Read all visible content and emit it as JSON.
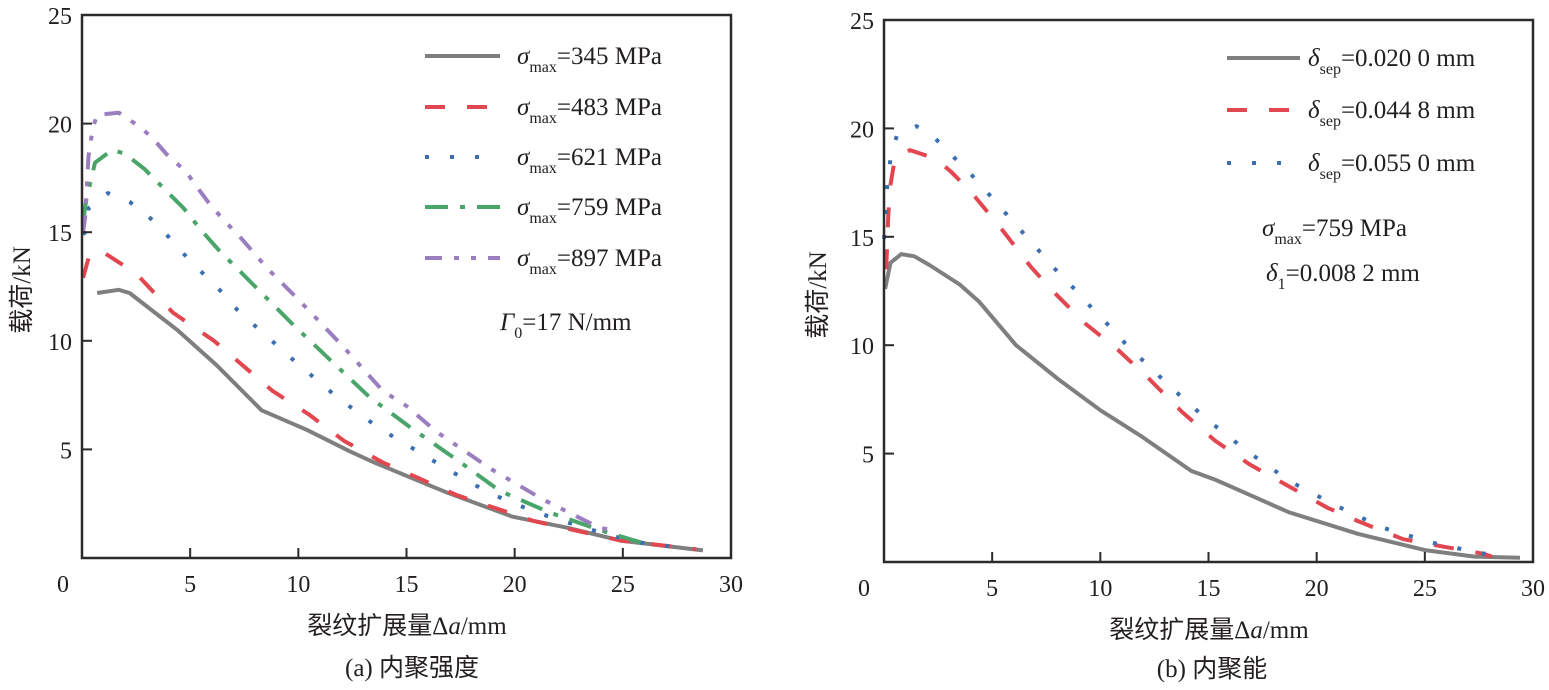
{
  "chart_data": [
    {
      "type": "line",
      "panel": "left",
      "caption": "(a) 内聚强度",
      "xlabel_prefix": "裂纹扩展量Δ",
      "xlabel_var": "a",
      "xlabel_suffix": "/mm",
      "ylabel": "载荷/kN",
      "xlim": [
        0,
        30
      ],
      "ylim": [
        0,
        25
      ],
      "xticks": [
        0,
        5,
        10,
        15,
        20,
        25,
        30
      ],
      "yticks": [
        5,
        10,
        15,
        20,
        25
      ],
      "origin_label": "0",
      "grid": false,
      "legend_position": "top-right",
      "annotation": {
        "symbol": "Γ",
        "sub": "0",
        "text": "=17 N/mm"
      },
      "series": [
        {
          "name": "σmax=345 MPa",
          "symbol": "σ",
          "sub": "max",
          "label": "=345 MPa",
          "color": "#7f7f7f",
          "style": "solid",
          "x": [
            0.7,
            1.7,
            2.2,
            4.4,
            6.2,
            8.3,
            10.4,
            12.4,
            13.5,
            15.2,
            16.9,
            19.9,
            22.4,
            24.9,
            28.7
          ],
          "y": [
            12.2,
            12.35,
            12.2,
            10.5,
            8.9,
            6.8,
            5.9,
            4.9,
            4.4,
            3.7,
            3.0,
            1.9,
            1.4,
            0.8,
            0.35
          ]
        },
        {
          "name": "σmax=483 MPa",
          "symbol": "σ",
          "sub": "max",
          "label": "=483 MPa",
          "color": "#e2474f",
          "style": "dashed",
          "x": [
            0.05,
            0.3,
            0.8,
            2.5,
            4.2,
            6.1,
            8.8,
            10.5,
            12.1,
            13.9,
            15.5,
            17.3,
            20.9,
            24.9,
            28.4
          ],
          "y": [
            12.9,
            13.8,
            14.2,
            13.1,
            11.3,
            10.0,
            7.7,
            6.6,
            5.4,
            4.4,
            3.7,
            2.9,
            1.7,
            0.8,
            0.4
          ]
        },
        {
          "name": "σmax=621 MPa",
          "symbol": "σ",
          "sub": "max",
          "label": "=621 MPa",
          "color": "#3a6fb0",
          "style": "dotted",
          "x": [
            0.05,
            0.15,
            0.3,
            1.2,
            2.2,
            3.1,
            3.9,
            4.7,
            5.6,
            6.4,
            7.2,
            8.1,
            9.9,
            11.8,
            13.7,
            14.7,
            16.7,
            18.8,
            21.0,
            23.2,
            25.5,
            27.8
          ],
          "y": [
            14.9,
            15.0,
            16.1,
            16.8,
            16.4,
            15.7,
            14.9,
            14.0,
            13.1,
            12.3,
            11.4,
            10.6,
            9.0,
            7.4,
            6.0,
            5.4,
            4.2,
            3.0,
            2.1,
            1.4,
            0.75,
            0.45
          ]
        },
        {
          "name": "σmax=759 MPa",
          "symbol": "σ",
          "sub": "max",
          "label": "=759 MPa",
          "color": "#4aa56b",
          "style": "dashdot",
          "x": [
            0.05,
            0.2,
            0.6,
            1.4,
            2.0,
            2.9,
            3.8,
            4.7,
            5.5,
            6.3,
            7.2,
            8.0,
            9.8,
            11.6,
            13.3,
            15.2,
            17.5,
            19.3,
            21.6,
            23.9,
            25.9
          ],
          "y": [
            15.5,
            16.5,
            18.2,
            18.8,
            18.6,
            17.9,
            17.0,
            16.1,
            15.1,
            14.2,
            13.3,
            12.5,
            10.7,
            9.0,
            7.4,
            6.0,
            4.4,
            3.1,
            2.1,
            1.3,
            0.7
          ]
        },
        {
          "name": "σmax=897 MPa",
          "symbol": "σ",
          "sub": "max",
          "label": "=897 MPa",
          "color": "#9b7ec0",
          "style": "dashdotdot",
          "x": [
            0.05,
            0.15,
            0.3,
            0.5,
            0.7,
            1.7,
            2.6,
            3.2,
            3.9,
            4.8,
            5.3,
            5.9,
            6.6,
            7.2,
            7.9,
            8.6,
            10.1,
            12.1,
            13.9,
            15.0,
            16.4,
            18.9,
            21.3,
            23.9,
            24.4
          ],
          "y": [
            15.0,
            15.7,
            18.5,
            19.8,
            20.4,
            20.5,
            19.9,
            19.4,
            18.6,
            17.8,
            17.1,
            16.3,
            15.5,
            14.9,
            14.1,
            13.3,
            11.8,
            9.7,
            7.7,
            7.0,
            5.8,
            4.1,
            2.7,
            1.4,
            1.3
          ]
        }
      ]
    },
    {
      "type": "line",
      "panel": "right",
      "caption": "(b) 内聚能",
      "xlabel_prefix": "裂纹扩展量Δ",
      "xlabel_var": "a",
      "xlabel_suffix": "/mm",
      "ylabel": "载荷/kN",
      "xlim": [
        0,
        30
      ],
      "ylim": [
        0,
        25
      ],
      "xticks": [
        0,
        5,
        10,
        15,
        20,
        25,
        30
      ],
      "yticks": [
        5,
        10,
        15,
        20,
        25
      ],
      "origin_label": "0",
      "grid": false,
      "legend_position": "top-right",
      "annotations": [
        {
          "symbol": "σ",
          "sub": "max",
          "text": "=759 MPa"
        },
        {
          "symbol": "δ",
          "sub": "1",
          "text": "=0.008 2 mm"
        }
      ],
      "series": [
        {
          "name": "δsep=0.020 0 mm",
          "symbol": "δ",
          "sub": "sep",
          "label": "=0.020 0 mm",
          "color": "#7f7f7f",
          "style": "solid",
          "x": [
            0.05,
            0.3,
            0.8,
            1.4,
            2.1,
            3.5,
            4.4,
            6.1,
            8.1,
            10.0,
            11.9,
            14.2,
            15.3,
            18.7,
            21.9,
            25.0,
            27.3,
            29.4
          ],
          "y": [
            12.6,
            13.8,
            14.2,
            14.1,
            13.7,
            12.8,
            12.0,
            10.0,
            8.4,
            7.0,
            5.8,
            4.2,
            3.8,
            2.3,
            1.3,
            0.55,
            0.25,
            0.2
          ]
        },
        {
          "name": "δsep=0.044 8 mm",
          "symbol": "δ",
          "sub": "sep",
          "label": "=0.044 8 mm",
          "color": "#e2474f",
          "style": "dashed",
          "x": [
            0.1,
            0.2,
            0.3,
            0.5,
            1.2,
            2.4,
            3.1,
            4.0,
            5.4,
            6.8,
            7.9,
            9.3,
            10.8,
            12.3,
            13.8,
            15.3,
            16.9,
            18.7,
            20.5,
            22.0,
            24.0,
            25.9,
            27.6,
            28.1
          ],
          "y": [
            13.5,
            16.0,
            17.4,
            18.6,
            19.0,
            18.6,
            18.0,
            17.1,
            15.4,
            13.6,
            12.4,
            11.0,
            9.8,
            8.4,
            6.9,
            5.6,
            4.5,
            3.5,
            2.5,
            1.85,
            1.05,
            0.7,
            0.4,
            0.25
          ]
        },
        {
          "name": "δsep=0.055 0 mm",
          "symbol": "δ",
          "sub": "sep",
          "label": "=0.055 0 mm",
          "color": "#3a6fb0",
          "style": "dotted",
          "x": [
            0.0,
            0.1,
            0.15,
            0.3,
            0.6,
            1.5,
            2.4,
            3.2,
            4.1,
            4.9,
            5.7,
            6.5,
            7.3,
            8.1,
            8.9,
            9.8,
            10.6,
            11.4,
            12.3,
            13.1,
            14.0,
            14.9,
            16.8,
            18.8,
            20.9,
            23.0,
            25.3,
            27.6,
            28.7
          ],
          "y": [
            14.9,
            16.2,
            17.4,
            18.6,
            19.7,
            20.1,
            19.5,
            18.7,
            17.8,
            16.9,
            16.0,
            15.1,
            14.2,
            13.3,
            12.5,
            11.5,
            10.7,
            9.8,
            9.0,
            8.2,
            7.4,
            6.6,
            5.1,
            3.7,
            2.6,
            1.6,
            0.9,
            0.4,
            0.3
          ]
        }
      ]
    }
  ]
}
